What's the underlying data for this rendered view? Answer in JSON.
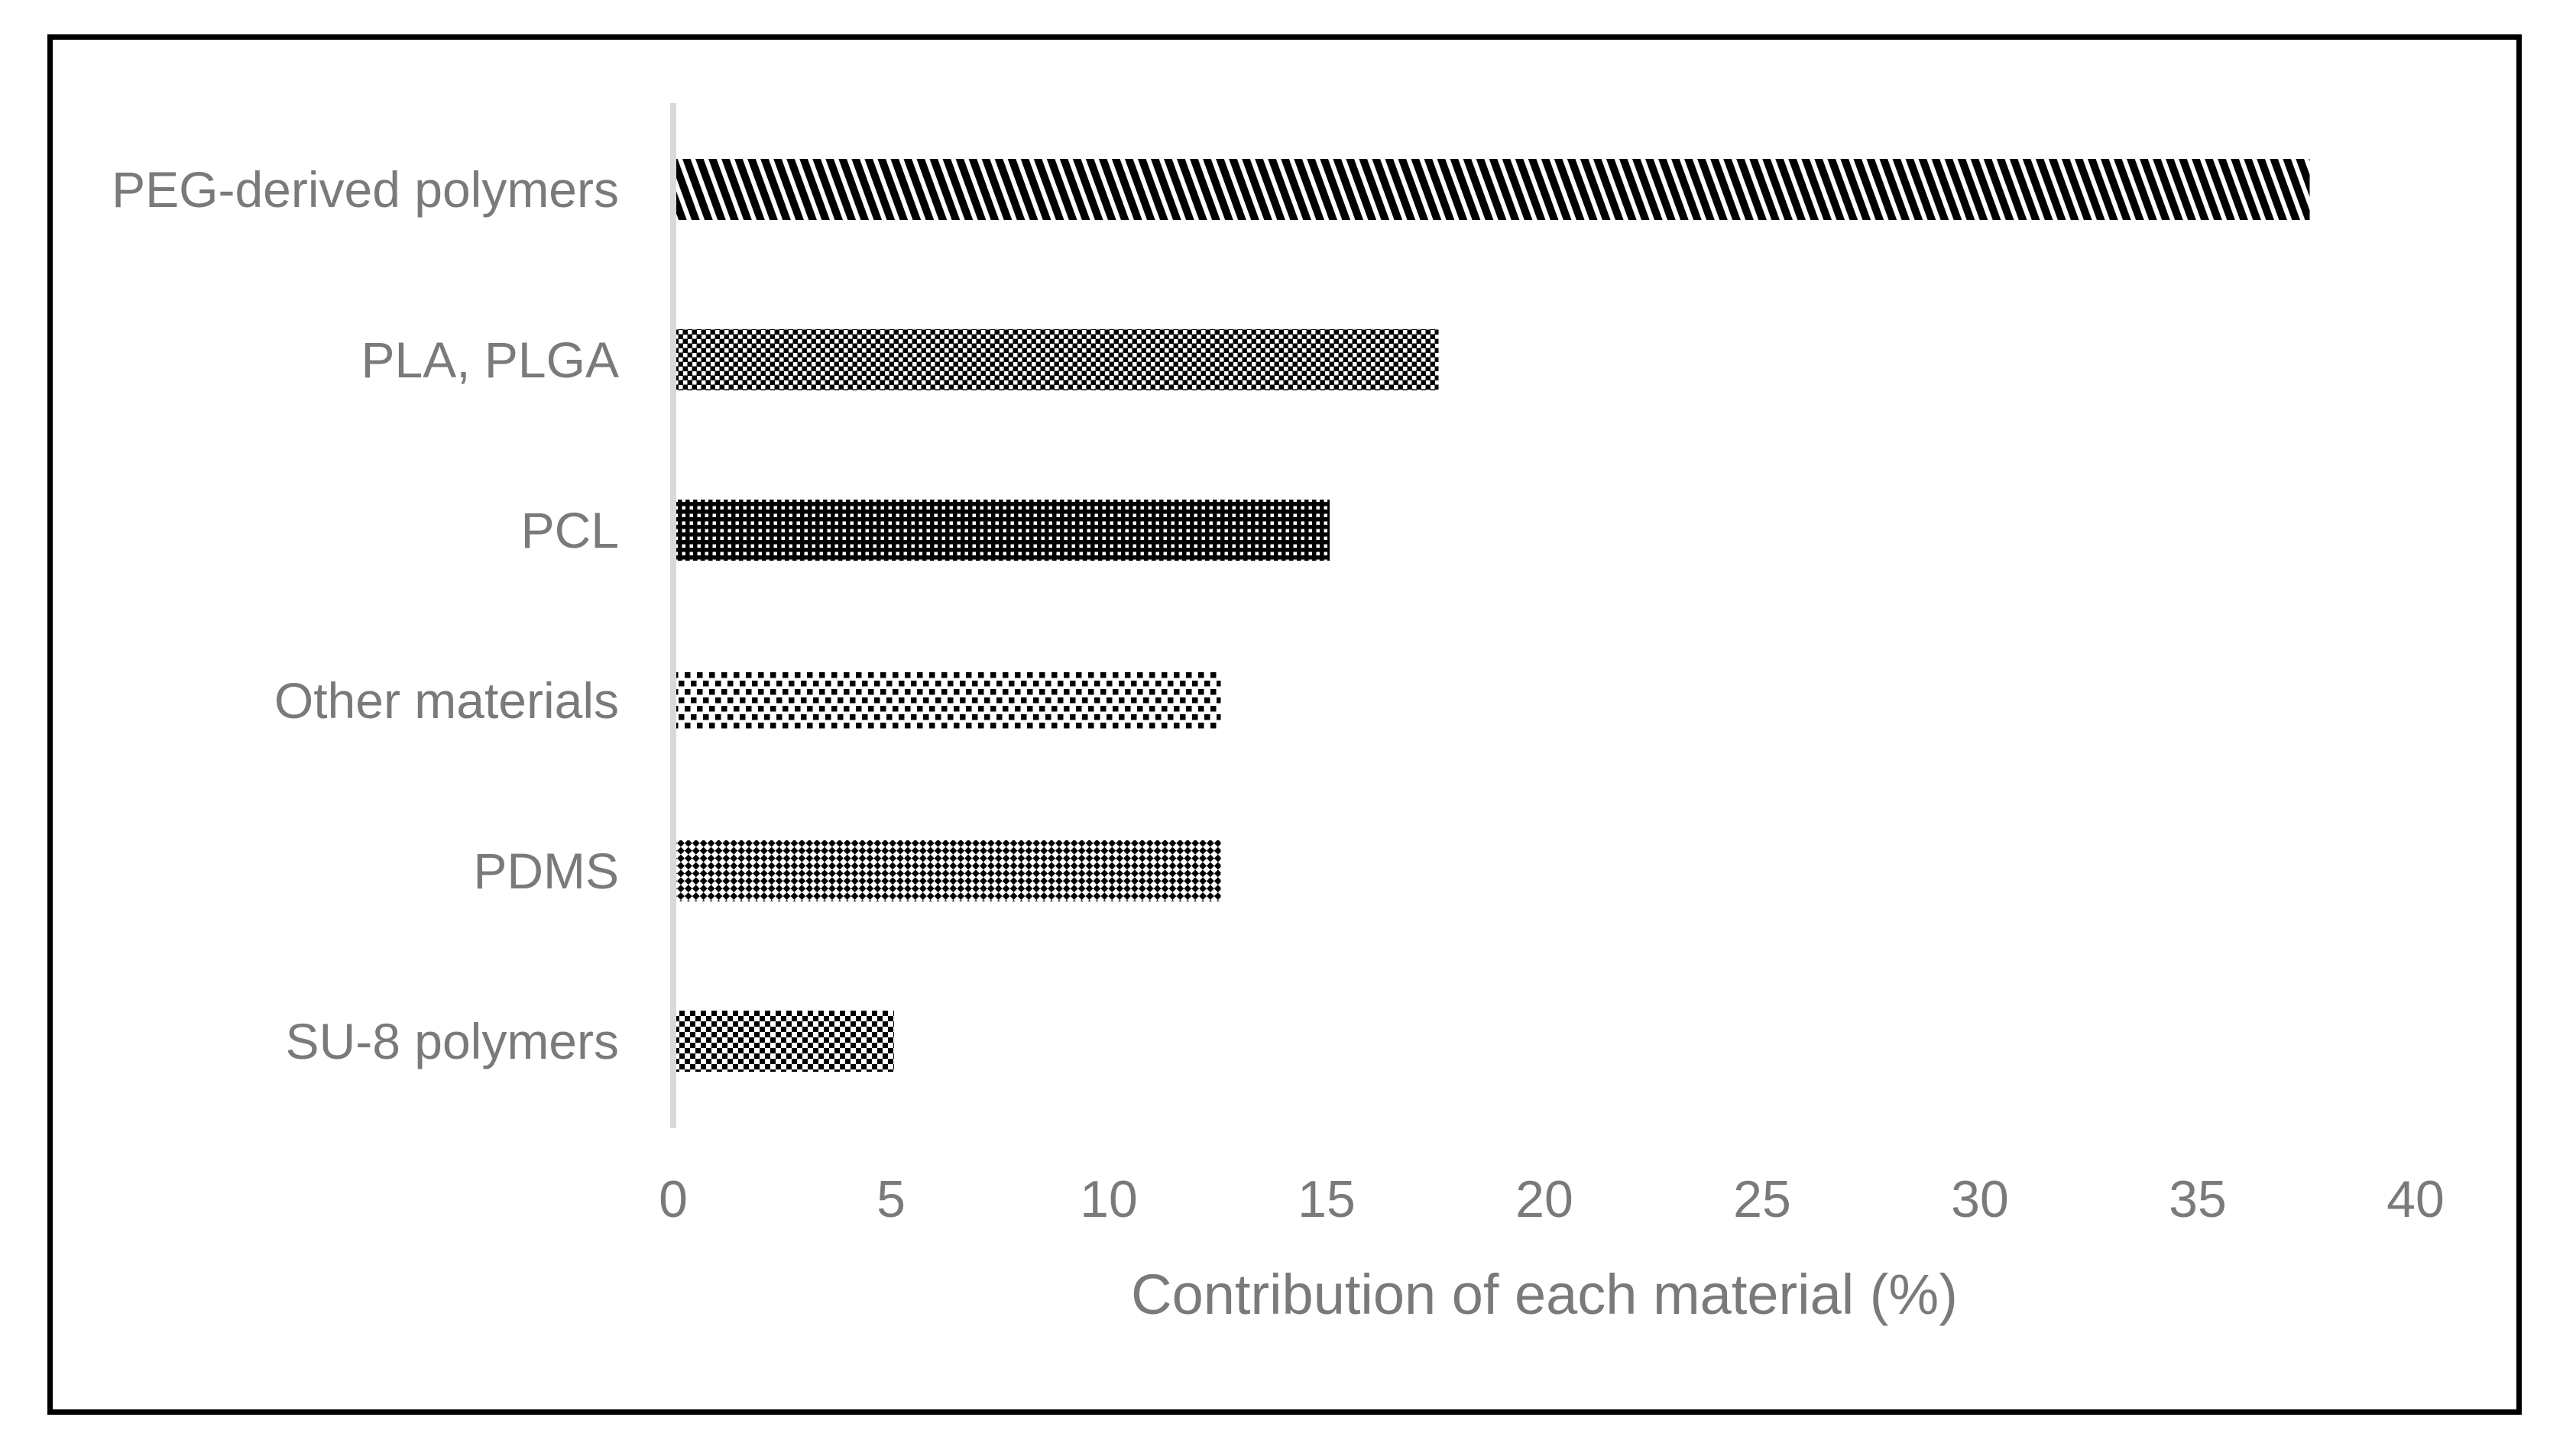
{
  "chart_data": {
    "type": "bar",
    "orientation": "horizontal",
    "title": "",
    "xlabel": "Contribution of each material (%)",
    "ylabel": "",
    "categories": [
      "PEG-derived polymers",
      "PLA, PLGA",
      "PCL",
      "Other materials",
      "PDMS",
      "SU-8 polymers"
    ],
    "values": [
      37.5,
      17.5,
      15,
      12.5,
      12.5,
      5
    ],
    "patterns": [
      "diagonal-stripe",
      "diamond-dot",
      "dense-dot-grid",
      "light-dot-grid",
      "diagonal-checker",
      "checkerboard"
    ],
    "xlim": [
      0,
      40
    ],
    "xticks": [
      0,
      5,
      10,
      15,
      20,
      25,
      30,
      35,
      40
    ],
    "grid": false,
    "legend": null,
    "colors": {
      "pattern_foreground": "#000000",
      "pattern_background": "#ffffff",
      "text": "#7a7a7a",
      "axis_line": "#d9d9d9",
      "border": "#000000"
    }
  }
}
